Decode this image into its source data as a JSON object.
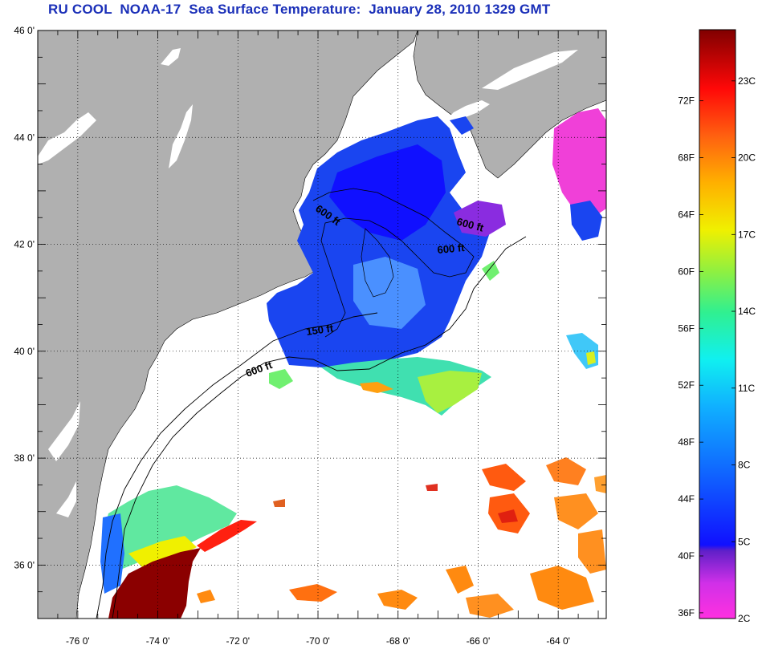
{
  "title": "RU COOL  NOAA-17  Sea Surface Temperature:  January 28, 2010 1329 GMT",
  "map": {
    "lat_labels": [
      "46 0'",
      "44 0'",
      "42 0'",
      "40 0'",
      "38 0'",
      "36 0'"
    ],
    "lon_labels": [
      "-76 0'",
      "-74 0'",
      "-72 0'",
      "-70 0'",
      "-68 0'",
      "-66 0'",
      "-64 0'"
    ],
    "lat_range": [
      35,
      46
    ],
    "lon_range": [
      -77,
      -62.8
    ],
    "land_color": "#b0b0b0",
    "no_data_color": "#ffffff",
    "contour_labels": [
      "600 ft",
      "600 ft",
      "600 ft",
      "150 ft",
      "600 ft"
    ]
  },
  "colorbar": {
    "fahrenheit_labels": [
      "72F",
      "68F",
      "64F",
      "60F",
      "56F",
      "52F",
      "48F",
      "44F",
      "40F",
      "36F"
    ],
    "celsius_labels": [
      "23C",
      "20C",
      "17C",
      "14C",
      "11C",
      "8C",
      "5C",
      "2C"
    ],
    "range_c": [
      2,
      25
    ]
  }
}
